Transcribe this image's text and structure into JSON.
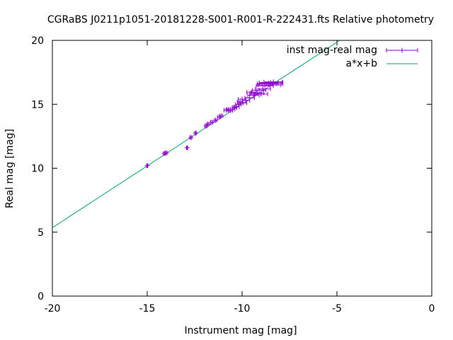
{
  "chart_data": {
    "type": "scatter",
    "title": "CGRaBS J0211p1051-20181228-S001-R001-R-222431.fts Relative photometry",
    "xlabel": "Instrument mag [mag]",
    "ylabel": "Real mag [mag]",
    "xlim": [
      -20,
      0
    ],
    "ylim": [
      0,
      20
    ],
    "x_ticks": [
      "-20",
      "-15",
      "-10",
      "-5",
      "0"
    ],
    "y_ticks": [
      "0",
      "5",
      "10",
      "15",
      "20"
    ],
    "x_tick_values": [
      -20,
      -15,
      -10,
      -5,
      0
    ],
    "y_tick_values": [
      0,
      5,
      10,
      15,
      20
    ],
    "grid": false,
    "legend_position": "top-right",
    "colors": {
      "points": "#9400d3",
      "fit": "#009e73",
      "axes": "#000000"
    },
    "series": [
      {
        "name": "inst mag-real mag",
        "kind": "points-with-xerrorbars",
        "points": [
          {
            "x": -15.0,
            "y": 10.2,
            "xerr": 0.03
          },
          {
            "x": -14.1,
            "y": 11.15,
            "xerr": 0.05
          },
          {
            "x": -14.0,
            "y": 11.2,
            "xerr": 0.05
          },
          {
            "x": -12.9,
            "y": 11.6,
            "xerr": 0.03
          },
          {
            "x": -12.7,
            "y": 12.4,
            "xerr": 0.05
          },
          {
            "x": -12.45,
            "y": 12.75,
            "xerr": 0.05
          },
          {
            "x": -11.9,
            "y": 13.3,
            "xerr": 0.06
          },
          {
            "x": -11.8,
            "y": 13.45,
            "xerr": 0.06
          },
          {
            "x": -11.6,
            "y": 13.6,
            "xerr": 0.06
          },
          {
            "x": -11.4,
            "y": 13.75,
            "xerr": 0.06
          },
          {
            "x": -11.2,
            "y": 14.0,
            "xerr": 0.08
          },
          {
            "x": -11.1,
            "y": 14.1,
            "xerr": 0.08
          },
          {
            "x": -10.85,
            "y": 14.55,
            "xerr": 0.1
          },
          {
            "x": -10.7,
            "y": 14.6,
            "xerr": 0.1
          },
          {
            "x": -10.6,
            "y": 14.5,
            "xerr": 0.1
          },
          {
            "x": -10.5,
            "y": 14.6,
            "xerr": 0.12
          },
          {
            "x": -10.4,
            "y": 14.75,
            "xerr": 0.12
          },
          {
            "x": -10.3,
            "y": 14.8,
            "xerr": 0.15
          },
          {
            "x": -10.2,
            "y": 15.0,
            "xerr": 0.15
          },
          {
            "x": -10.1,
            "y": 15.2,
            "xerr": 0.15
          },
          {
            "x": -10.0,
            "y": 15.4,
            "xerr": 0.2
          },
          {
            "x": -9.95,
            "y": 15.1,
            "xerr": 0.2
          },
          {
            "x": -9.8,
            "y": 15.3,
            "xerr": 0.2
          },
          {
            "x": -9.6,
            "y": 15.5,
            "xerr": 0.25
          },
          {
            "x": -9.5,
            "y": 15.95,
            "xerr": 0.25
          },
          {
            "x": -9.4,
            "y": 15.7,
            "xerr": 0.3
          },
          {
            "x": -9.3,
            "y": 15.8,
            "xerr": 0.3
          },
          {
            "x": -9.2,
            "y": 15.9,
            "xerr": 0.35
          },
          {
            "x": -9.1,
            "y": 16.1,
            "xerr": 0.35
          },
          {
            "x": -9.0,
            "y": 15.8,
            "xerr": 0.35
          },
          {
            "x": -8.9,
            "y": 16.2,
            "xerr": 0.4
          },
          {
            "x": -8.8,
            "y": 16.45,
            "xerr": 0.45
          },
          {
            "x": -8.7,
            "y": 16.6,
            "xerr": 0.5
          },
          {
            "x": -8.6,
            "y": 16.65,
            "xerr": 0.5
          },
          {
            "x": -8.55,
            "y": 16.5,
            "xerr": 0.6
          },
          {
            "x": -8.5,
            "y": 16.7,
            "xerr": 0.6
          },
          {
            "x": -8.4,
            "y": 16.6,
            "xerr": 0.55
          },
          {
            "x": -8.35,
            "y": 16.75,
            "xerr": 0.5
          }
        ]
      },
      {
        "name": "a*x+b",
        "kind": "line",
        "x": [
          -20,
          -4.85
        ],
        "y": [
          5.35,
          20.0
        ]
      }
    ]
  }
}
